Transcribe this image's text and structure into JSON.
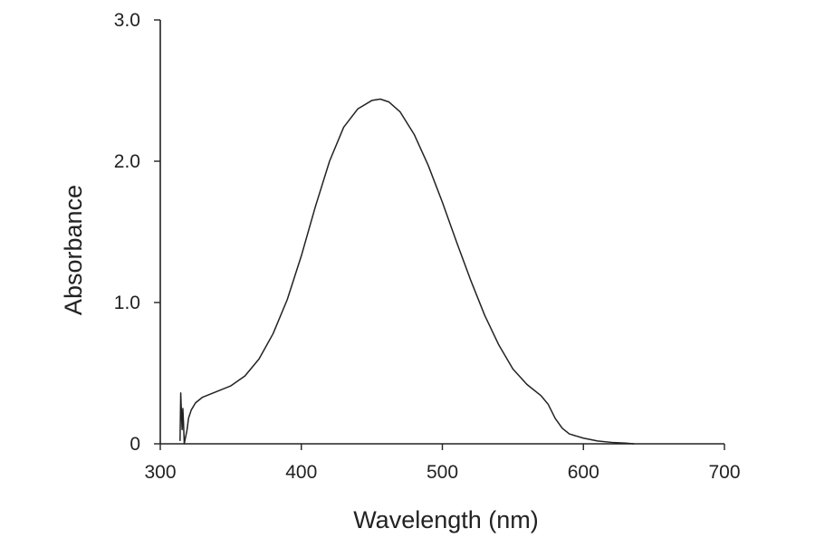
{
  "chart_data": {
    "type": "line",
    "xlabel": "Wavelength (nm)",
    "ylabel": "Absorbance",
    "xlim": [
      300,
      700
    ],
    "ylim": [
      0,
      3.0
    ],
    "x_ticks": [
      {
        "value": 300,
        "label": "300"
      },
      {
        "value": 400,
        "label": "400"
      },
      {
        "value": 500,
        "label": "500"
      },
      {
        "value": 600,
        "label": "600"
      },
      {
        "value": 700,
        "label": "700"
      }
    ],
    "y_ticks": [
      {
        "value": 0,
        "label": "0"
      },
      {
        "value": 1.0,
        "label": "1.0"
      },
      {
        "value": 2.0,
        "label": "2.0"
      },
      {
        "value": 3.0,
        "label": "3.0"
      }
    ],
    "grid": false,
    "legend": "none",
    "series": [
      {
        "color": "#222222",
        "points": [
          [
            314,
            0.02
          ],
          [
            314.5,
            0.36
          ],
          [
            315,
            0.22
          ],
          [
            315.5,
            0.1
          ],
          [
            316,
            0.25
          ],
          [
            316.5,
            0.14
          ],
          [
            317,
            0.0
          ],
          [
            318,
            0.05
          ],
          [
            319,
            0.1
          ],
          [
            320,
            0.18
          ],
          [
            322,
            0.24
          ],
          [
            325,
            0.29
          ],
          [
            330,
            0.33
          ],
          [
            340,
            0.37
          ],
          [
            350,
            0.41
          ],
          [
            360,
            0.48
          ],
          [
            370,
            0.6
          ],
          [
            380,
            0.78
          ],
          [
            390,
            1.02
          ],
          [
            400,
            1.33
          ],
          [
            410,
            1.68
          ],
          [
            420,
            2.0
          ],
          [
            430,
            2.24
          ],
          [
            440,
            2.37
          ],
          [
            450,
            2.43
          ],
          [
            456,
            2.44
          ],
          [
            462,
            2.42
          ],
          [
            470,
            2.35
          ],
          [
            480,
            2.19
          ],
          [
            490,
            1.97
          ],
          [
            500,
            1.71
          ],
          [
            510,
            1.43
          ],
          [
            520,
            1.16
          ],
          [
            530,
            0.91
          ],
          [
            540,
            0.7
          ],
          [
            550,
            0.53
          ],
          [
            560,
            0.42
          ],
          [
            570,
            0.34
          ],
          [
            575,
            0.28
          ],
          [
            580,
            0.18
          ],
          [
            585,
            0.11
          ],
          [
            590,
            0.07
          ],
          [
            600,
            0.04
          ],
          [
            610,
            0.02
          ],
          [
            620,
            0.01
          ],
          [
            630,
            0.005
          ],
          [
            636,
            0.0
          ]
        ]
      }
    ]
  }
}
